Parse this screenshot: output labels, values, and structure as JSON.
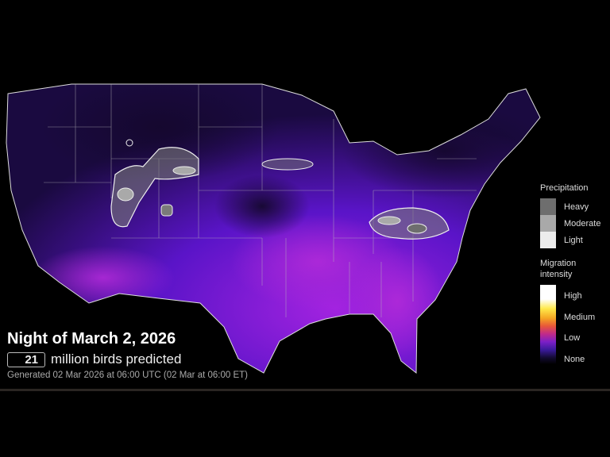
{
  "title": "Night of March 2, 2026",
  "birds_count": "21",
  "birds_label": "million birds predicted",
  "generated": "Generated 02 Mar 2026 at 06:00 UTC (02 Mar at 06:00 ET)",
  "legend": {
    "precipitation_title": "Precipitation",
    "precipitation": [
      {
        "label": "Heavy",
        "color": "#6e6e6e"
      },
      {
        "label": "Moderate",
        "color": "#a9a9a9"
      },
      {
        "label": "Light",
        "color": "#ececec"
      }
    ],
    "migration_title": "Migration intensity",
    "migration_levels": [
      "High",
      "Medium",
      "Low",
      "None"
    ]
  },
  "colors": {
    "background": "#000000",
    "low": "#4b12c9",
    "moderate_low": "#9a1fe0",
    "none": "#120a30"
  }
}
